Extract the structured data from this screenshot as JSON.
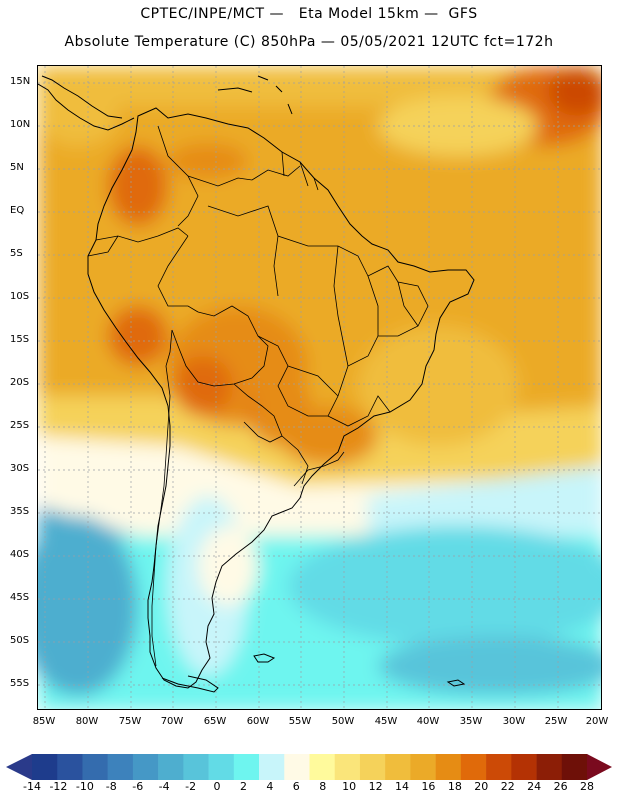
{
  "header": {
    "line1": "CPTEC/INPE/MCT —   Eta Model 15km —  GFS",
    "line2": "Absolute Temperature (C) 850hPa — 05/05/2021 12UTC fct=172h"
  },
  "map": {
    "lat_labels": [
      "15N",
      "10N",
      "5N",
      "EQ",
      "5S",
      "10S",
      "15S",
      "20S",
      "25S",
      "30S",
      "35S",
      "40S",
      "45S",
      "50S",
      "55S"
    ],
    "lon_labels": [
      "85W",
      "80W",
      "75W",
      "70W",
      "65W",
      "60W",
      "55W",
      "50W",
      "45W",
      "40W",
      "35W",
      "30W",
      "25W",
      "20W"
    ],
    "extent": {
      "lon_min": -86,
      "lon_max": -19.5,
      "lat_min": -58,
      "lat_max": 16.5
    }
  },
  "colorbar": {
    "ticks": [
      "-14",
      "-12",
      "-10",
      "-8",
      "-6",
      "-4",
      "-2",
      "0",
      "2",
      "4",
      "6",
      "8",
      "10",
      "12",
      "14",
      "16",
      "18",
      "20",
      "22",
      "24",
      "26",
      "28"
    ],
    "colors": [
      "#1e3c8c",
      "#2a529e",
      "#346cae",
      "#3d82bc",
      "#4598c6",
      "#4eaecf",
      "#58c4da",
      "#62dbe6",
      "#6ef5ef",
      "#c8f5fa",
      "#fffae6",
      "#fffa9c",
      "#fae57a",
      "#f5d25a",
      "#f0bd3c",
      "#ebaa28",
      "#e68c14",
      "#e06a0a",
      "#cc4a06",
      "#b43204",
      "#8c1e06",
      "#6e1008"
    ],
    "low_color": "#2a3a8a",
    "high_color": "#7a0a1e"
  }
}
